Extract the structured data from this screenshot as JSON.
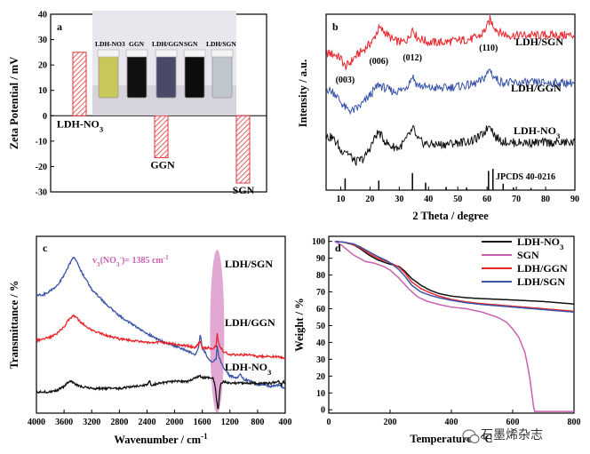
{
  "chart_data": [
    {
      "panel": "a",
      "type": "bar",
      "ylabel": "Zeta Potential / mV",
      "ylim": [
        -30,
        40
      ],
      "yticks": [
        -30,
        -20,
        -10,
        0,
        10,
        20,
        30,
        40
      ],
      "categories": [
        "LDH-NO3",
        "GGN",
        "SGN"
      ],
      "category_labels": [
        [
          "LDH-NO",
          "3"
        ],
        [
          "GGN",
          ""
        ],
        [
          "SGN",
          ""
        ]
      ],
      "values": [
        25,
        -16.5,
        -26.5
      ],
      "bar_color": "#e0343b",
      "bar_fill": "hatched",
      "inset_photo_labels": [
        "LDH-NO3",
        "GGN",
        "LDH/GGN",
        "SGN",
        "LDH/SGN"
      ],
      "inset_vial_colors": [
        "#c8c85a",
        "#101010",
        "#4a4a68",
        "#0c0c0c",
        "#bfc6cc"
      ]
    },
    {
      "panel": "b",
      "type": "line",
      "xlabel": "2 Theta / degree",
      "ylabel": "Intensity / a.u.",
      "xlim": [
        5,
        90
      ],
      "xticks": [
        10,
        20,
        30,
        40,
        50,
        60,
        70,
        80,
        90
      ],
      "series": [
        {
          "name": "LDH/SGN",
          "color": "#e8252b",
          "x": [
            5,
            8,
            10,
            11.5,
            13,
            15,
            18,
            21,
            23,
            25,
            28,
            31,
            33,
            34.5,
            36,
            40,
            45,
            50,
            55,
            58,
            60,
            61,
            62,
            64,
            67,
            70,
            75,
            80,
            85,
            90
          ],
          "y": [
            0.78,
            0.77,
            0.75,
            0.7,
            0.72,
            0.76,
            0.8,
            0.85,
            0.92,
            0.9,
            0.85,
            0.84,
            0.86,
            0.92,
            0.87,
            0.84,
            0.84,
            0.85,
            0.86,
            0.88,
            0.93,
            0.97,
            0.94,
            0.9,
            0.88,
            0.88,
            0.88,
            0.88,
            0.88,
            0.88
          ]
        },
        {
          "name": "LDH/GGN",
          "color": "#3a55a8",
          "x": [
            5,
            8,
            10,
            12,
            14,
            16,
            18,
            21,
            23,
            25,
            28,
            31,
            33,
            34.5,
            36,
            40,
            45,
            50,
            55,
            58,
            60,
            61,
            62,
            64,
            67,
            70,
            75,
            80,
            85,
            90
          ],
          "y": [
            0.58,
            0.55,
            0.5,
            0.46,
            0.45,
            0.47,
            0.5,
            0.56,
            0.6,
            0.58,
            0.56,
            0.57,
            0.6,
            0.65,
            0.6,
            0.58,
            0.58,
            0.59,
            0.6,
            0.62,
            0.66,
            0.69,
            0.65,
            0.62,
            0.61,
            0.61,
            0.61,
            0.61,
            0.61,
            0.61
          ]
        },
        {
          "name": "LDH-NO3",
          "color": "#111111",
          "x": [
            5,
            7,
            9,
            10,
            11.5,
            13,
            15,
            18,
            20,
            22,
            23,
            25,
            27,
            30,
            32,
            34,
            35,
            36,
            38,
            40,
            45,
            50,
            55,
            58,
            60,
            61,
            62,
            63,
            65,
            68,
            72,
            80,
            85,
            90
          ],
          "y": [
            0.3,
            0.3,
            0.26,
            0.22,
            0.23,
            0.2,
            0.16,
            0.18,
            0.24,
            0.31,
            0.33,
            0.28,
            0.25,
            0.24,
            0.28,
            0.33,
            0.35,
            0.29,
            0.27,
            0.26,
            0.26,
            0.27,
            0.28,
            0.31,
            0.35,
            0.38,
            0.33,
            0.3,
            0.28,
            0.27,
            0.27,
            0.27,
            0.27,
            0.27
          ]
        }
      ],
      "series_labels": [
        [
          "LDH/SGN",
          ""
        ],
        [
          "LDH/GGN",
          ""
        ],
        [
          "LDH-NO",
          "3"
        ]
      ],
      "peak_annotations": [
        {
          "label": "(003)",
          "x": 11.5
        },
        {
          "label": "(006)",
          "x": 23
        },
        {
          "label": "(012)",
          "x": 34.5
        },
        {
          "label": "(110)",
          "x": 60.5
        }
      ],
      "reference": {
        "name": "JPCDS 40-0216",
        "x": [
          11.5,
          23,
          34.5,
          39,
          46,
          53,
          60.5,
          62,
          65.5,
          69,
          75
        ],
        "height": [
          0.55,
          0.45,
          0.8,
          0.35,
          0.15,
          0.12,
          0.9,
          1.0,
          0.3,
          0.12,
          0.1
        ]
      }
    },
    {
      "panel": "c",
      "type": "line",
      "xlabel": "Wavenumber / cm-1",
      "xlabel_parts": [
        "Wavenumber / cm",
        "-1"
      ],
      "ylabel": "Transmittance / %",
      "xlim": [
        4000,
        400
      ],
      "xticks": [
        4000,
        3600,
        3200,
        2800,
        2400,
        2000,
        1600,
        1200,
        800,
        400
      ],
      "series": [
        {
          "name": "LDH/SGN",
          "color": "#3a55a8",
          "x": [
            4000,
            3900,
            3800,
            3700,
            3600,
            3550,
            3500,
            3460,
            3420,
            3350,
            3200,
            3000,
            2800,
            2600,
            2400,
            2200,
            2000,
            1800,
            1700,
            1650,
            1630,
            1600,
            1500,
            1450,
            1400,
            1385,
            1360,
            1300,
            1200,
            1100,
            1050,
            1000,
            900,
            800,
            700,
            600,
            500,
            400
          ],
          "y": [
            0.33,
            0.33,
            0.31,
            0.28,
            0.22,
            0.18,
            0.14,
            0.12,
            0.14,
            0.2,
            0.3,
            0.38,
            0.45,
            0.5,
            0.55,
            0.59,
            0.62,
            0.65,
            0.67,
            0.62,
            0.55,
            0.63,
            0.7,
            0.71,
            0.69,
            0.62,
            0.68,
            0.74,
            0.79,
            0.8,
            0.78,
            0.81,
            0.82,
            0.84,
            0.84,
            0.85,
            0.84,
            0.86
          ]
        },
        {
          "name": "LDH/GGN",
          "color": "#e8252b",
          "x": [
            4000,
            3900,
            3800,
            3700,
            3600,
            3550,
            3500,
            3460,
            3420,
            3350,
            3200,
            3000,
            2800,
            2600,
            2400,
            2200,
            2000,
            1800,
            1700,
            1630,
            1600,
            1500,
            1450,
            1400,
            1385,
            1360,
            1300,
            1200,
            1100,
            1000,
            900,
            800,
            700,
            600,
            500,
            400
          ],
          "y": [
            0.59,
            0.58,
            0.57,
            0.55,
            0.51,
            0.48,
            0.46,
            0.45,
            0.46,
            0.49,
            0.53,
            0.56,
            0.58,
            0.59,
            0.6,
            0.6,
            0.61,
            0.62,
            0.63,
            0.59,
            0.63,
            0.63,
            0.64,
            0.62,
            0.55,
            0.61,
            0.65,
            0.67,
            0.67,
            0.67,
            0.67,
            0.68,
            0.68,
            0.68,
            0.68,
            0.69
          ]
        },
        {
          "name": "LDH-NO3",
          "color": "#111111",
          "x": [
            4000,
            3900,
            3800,
            3700,
            3600,
            3550,
            3500,
            3460,
            3420,
            3350,
            3200,
            3000,
            2800,
            2600,
            2400,
            2360,
            2340,
            2200,
            2000,
            1800,
            1700,
            1630,
            1600,
            1500,
            1450,
            1420,
            1385,
            1370,
            1340,
            1300,
            1200,
            1100,
            1000,
            900,
            800,
            700,
            600,
            500,
            450,
            430,
            400
          ],
          "y": [
            0.88,
            0.88,
            0.88,
            0.87,
            0.85,
            0.83,
            0.82,
            0.83,
            0.84,
            0.85,
            0.86,
            0.86,
            0.86,
            0.85,
            0.84,
            0.82,
            0.84,
            0.83,
            0.82,
            0.82,
            0.8,
            0.79,
            0.8,
            0.8,
            0.8,
            0.83,
            0.95,
            0.98,
            0.84,
            0.82,
            0.83,
            0.83,
            0.83,
            0.83,
            0.83,
            0.83,
            0.83,
            0.82,
            0.84,
            0.82,
            0.83
          ]
        }
      ],
      "series_labels": [
        [
          "LDH/SGN",
          ""
        ],
        [
          "LDH/GGN",
          ""
        ],
        [
          "LDH-NO",
          "3"
        ]
      ],
      "annotation": {
        "x": 1385,
        "label_parts": [
          "v",
          "3",
          "(NO",
          "3",
          "-",
          ")= 1385 cm",
          "-1"
        ],
        "color": "#c860b0"
      }
    },
    {
      "panel": "d",
      "type": "line",
      "xlabel": "Temperature / °C",
      "ylabel": "Weight / %",
      "xlim": [
        0,
        800
      ],
      "ylim": [
        -2,
        103
      ],
      "xticks": [
        0,
        200,
        400,
        600,
        800
      ],
      "yticks": [
        0,
        10,
        20,
        30,
        40,
        50,
        60,
        70,
        80,
        90,
        100
      ],
      "legend": "top-right",
      "legend_labels": [
        [
          "LDH-NO",
          "3"
        ],
        [
          "SGN",
          ""
        ],
        [
          "LDH/GGN",
          ""
        ],
        [
          "LDH/SGN",
          ""
        ]
      ],
      "series": [
        {
          "name": "LDH-NO3",
          "color": "#111111",
          "x": [
            20,
            50,
            80,
            100,
            130,
            160,
            190,
            210,
            230,
            250,
            270,
            300,
            330,
            360,
            400,
            450,
            500,
            600,
            700,
            800
          ],
          "y": [
            100,
            99.5,
            98,
            96,
            92,
            89,
            87,
            86,
            85,
            82,
            78,
            74,
            71,
            69,
            67.5,
            66.5,
            66,
            65.2,
            64.3,
            62.8
          ]
        },
        {
          "name": "SGN",
          "color": "#c860b0",
          "x": [
            20,
            40,
            60,
            80,
            100,
            120,
            150,
            180,
            200,
            230,
            260,
            290,
            320,
            360,
            400,
            450,
            500,
            550,
            580,
            600,
            620,
            640,
            655,
            665,
            670,
            680,
            700,
            750,
            800
          ],
          "y": [
            100,
            98,
            95,
            92,
            90,
            88,
            87,
            85,
            83,
            78,
            72,
            67,
            64.5,
            62.5,
            61,
            60,
            58,
            55,
            52,
            48,
            43,
            34,
            20,
            6,
            -1,
            -1,
            -1,
            -1,
            -1
          ]
        },
        {
          "name": "LDH/GGN",
          "color": "#e8252b",
          "x": [
            20,
            50,
            80,
            100,
            130,
            160,
            190,
            210,
            230,
            250,
            270,
            300,
            330,
            360,
            400,
            450,
            500,
            600,
            700,
            800
          ],
          "y": [
            100,
            99.5,
            98,
            96.5,
            93,
            90,
            88,
            86.5,
            84.5,
            81,
            76,
            72,
            69.5,
            67.5,
            65.5,
            64,
            63,
            61.5,
            60,
            58.5
          ]
        },
        {
          "name": "LDH/SGN",
          "color": "#3a55a8",
          "x": [
            20,
            50,
            80,
            100,
            130,
            160,
            190,
            210,
            230,
            250,
            270,
            300,
            330,
            360,
            400,
            450,
            500,
            600,
            700,
            800
          ],
          "y": [
            100,
            99.5,
            98.5,
            97,
            94,
            91,
            88.5,
            86,
            83,
            79,
            74,
            70,
            68,
            66.5,
            65,
            63.5,
            62.5,
            61,
            59.5,
            58
          ]
        }
      ]
    }
  ],
  "panel_letters": [
    "a",
    "b",
    "c",
    "d"
  ],
  "watermark": "石墨烯杂志"
}
